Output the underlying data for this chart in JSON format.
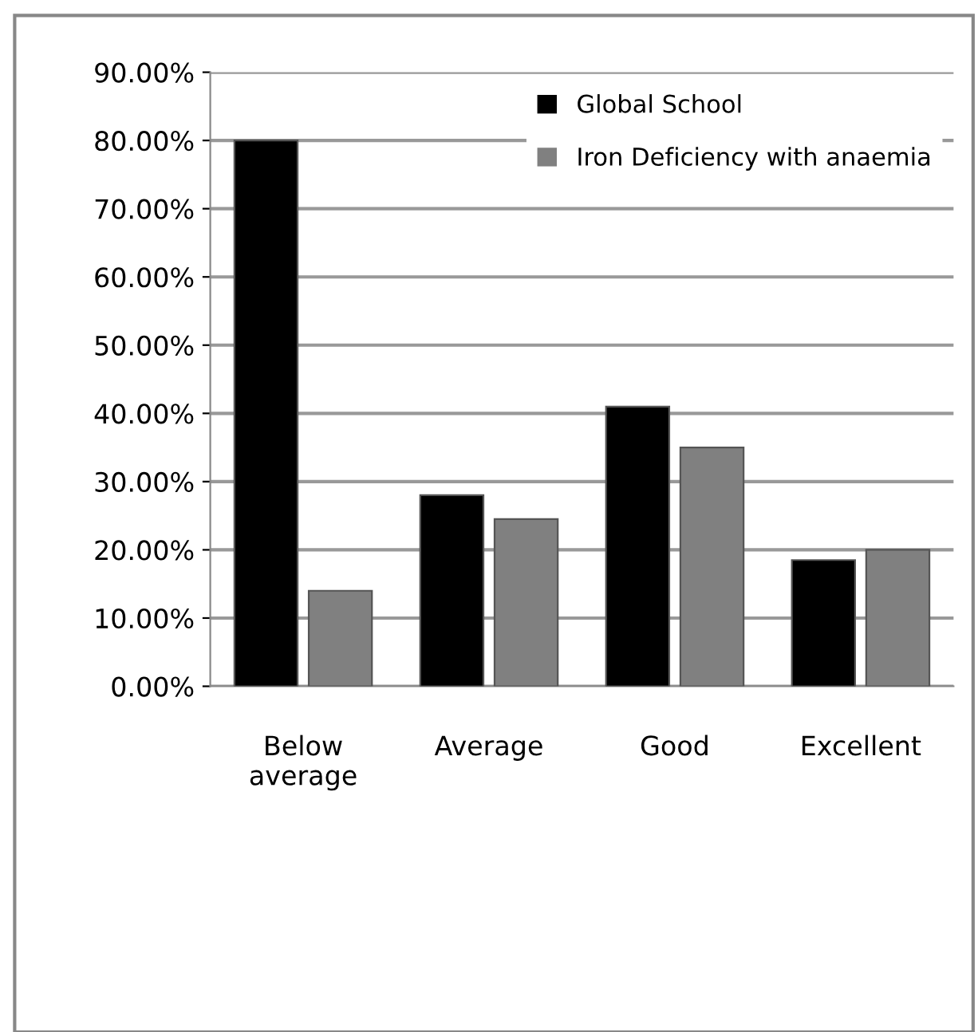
{
  "chart_data": {
    "type": "bar",
    "categories": [
      "Below average",
      "Average",
      "Good",
      "Excellent"
    ],
    "series": [
      {
        "name": "Global School",
        "color": "#000000",
        "values": [
          80,
          28,
          41,
          18.5
        ]
      },
      {
        "name": "Iron Deficiency with anaemia",
        "color": "#808080",
        "values": [
          14,
          24.5,
          35,
          20
        ]
      }
    ],
    "ylim": [
      0,
      90
    ],
    "yticks": [
      {
        "value": 0,
        "label": "0.00%"
      },
      {
        "value": 10,
        "label": "10.00%"
      },
      {
        "value": 20,
        "label": "20.00%"
      },
      {
        "value": 30,
        "label": "30.00%"
      },
      {
        "value": 40,
        "label": "40.00%"
      },
      {
        "value": 50,
        "label": "50.00%"
      },
      {
        "value": 60,
        "label": "60.00%"
      },
      {
        "value": 70,
        "label": "70.00%"
      },
      {
        "value": 80,
        "label": "80.00%"
      },
      {
        "value": 90,
        "label": "90.00%"
      }
    ],
    "grid": "y",
    "legend": "top right"
  }
}
